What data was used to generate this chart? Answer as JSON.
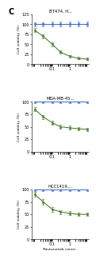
{
  "panel_label": "C",
  "subplots": [
    {
      "title": "BT474, H...",
      "blue_y": [
        100,
        100,
        100,
        100,
        100,
        100,
        100
      ],
      "blue_yerr": [
        5,
        5,
        6,
        6,
        6,
        6,
        6
      ],
      "green_y": [
        85,
        70,
        50,
        30,
        20,
        15,
        13
      ],
      "green_yerr": [
        5,
        5,
        5,
        4,
        3,
        3,
        3
      ],
      "ylim": [
        0,
        125
      ],
      "yticks": [
        0,
        25,
        50,
        75,
        100,
        125
      ]
    },
    {
      "title": "MDA-MB-45...",
      "blue_y": [
        100,
        100,
        100,
        100,
        100,
        100,
        100
      ],
      "blue_yerr": [
        3,
        3,
        3,
        3,
        3,
        3,
        3
      ],
      "green_y": [
        85,
        70,
        58,
        50,
        48,
        46,
        45
      ],
      "green_yerr": [
        4,
        4,
        4,
        4,
        4,
        3,
        3
      ],
      "ylim": [
        0,
        100
      ],
      "yticks": [
        0,
        25,
        50,
        75,
        100
      ]
    },
    {
      "title": "HCC1419,...",
      "blue_y": [
        100,
        100,
        100,
        100,
        100,
        100,
        100
      ],
      "blue_yerr": [
        3,
        3,
        3,
        3,
        3,
        3,
        3
      ],
      "green_y": [
        90,
        75,
        60,
        55,
        52,
        50,
        50
      ],
      "green_yerr": [
        5,
        5,
        5,
        4,
        4,
        3,
        3
      ],
      "ylim": [
        0,
        100
      ],
      "yticks": [
        0,
        25,
        50,
        75,
        100
      ]
    }
  ],
  "x_values": [
    0.01,
    0.03,
    0.1,
    0.3,
    1,
    3,
    10
  ],
  "xlabel": "Trastuzumab conce...",
  "ylabel": "Cell viability (%)",
  "blue_color": "#4472c4",
  "green_color": "#548235",
  "fig_bg": "#ffffff",
  "fig_width": 1.05,
  "fig_height": 3.2
}
